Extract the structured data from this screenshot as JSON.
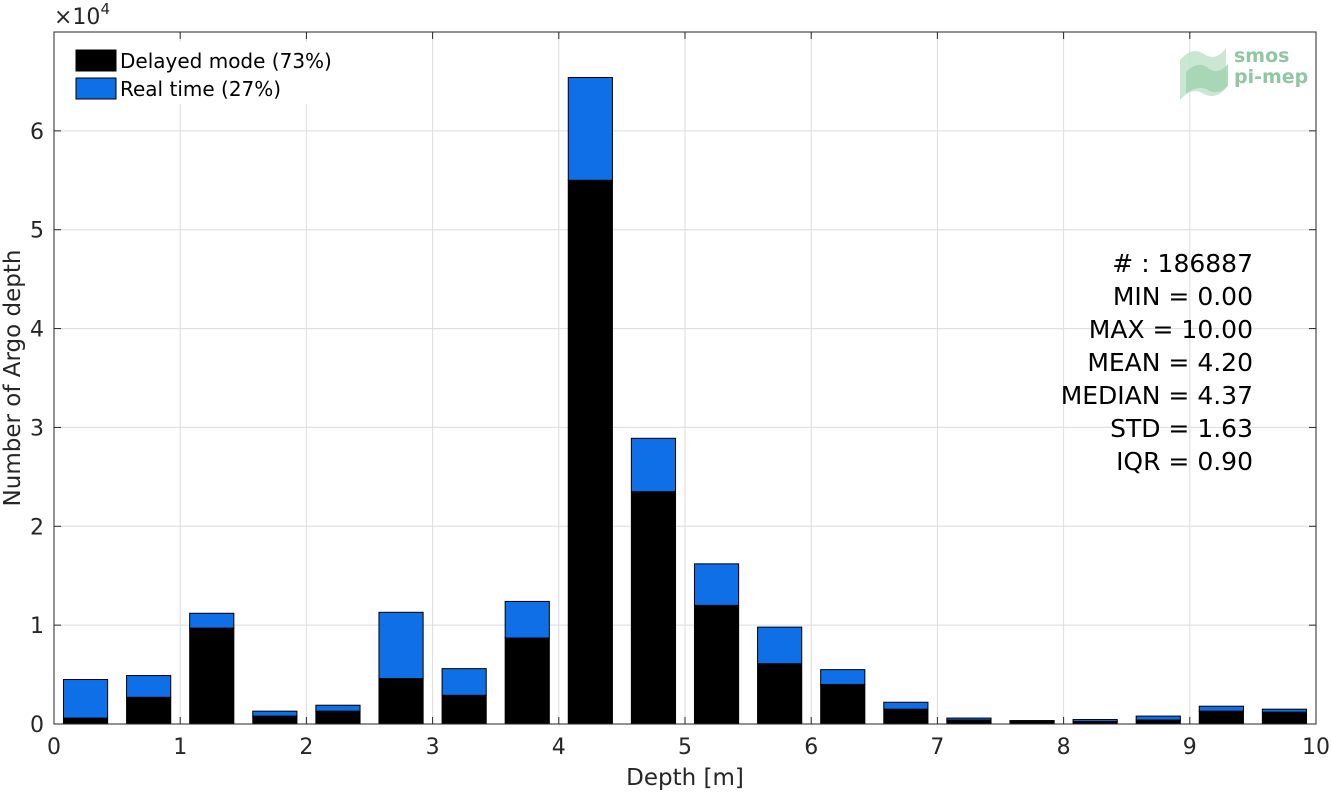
{
  "chart_data": {
    "type": "bar",
    "stacked": true,
    "categories": [
      "0.25",
      "0.75",
      "1.25",
      "1.75",
      "2.25",
      "2.75",
      "3.25",
      "3.75",
      "4.25",
      "4.75",
      "5.25",
      "5.75",
      "6.25",
      "6.75",
      "7.25",
      "7.75",
      "8.25",
      "8.75",
      "9.25",
      "9.75"
    ],
    "x": [
      0.25,
      0.75,
      1.25,
      1.75,
      2.25,
      2.75,
      3.25,
      3.75,
      4.25,
      4.75,
      5.25,
      5.75,
      6.25,
      6.75,
      7.25,
      7.75,
      8.25,
      8.75,
      9.25,
      9.75
    ],
    "series": [
      {
        "name": "Delayed mode (73%)",
        "color": "#000000",
        "values": [
          600,
          2700,
          9700,
          800,
          1300,
          4600,
          2900,
          8700,
          55000,
          23500,
          12000,
          6100,
          4000,
          1500,
          400,
          250,
          250,
          400,
          1300,
          1200
        ]
      },
      {
        "name": "Real time (27%)",
        "color": "#0f6fe6",
        "values": [
          3900,
          2200,
          1500,
          500,
          600,
          6700,
          2700,
          3700,
          10400,
          5400,
          4200,
          3700,
          1500,
          700,
          200,
          100,
          200,
          400,
          500,
          300
        ]
      }
    ],
    "xlabel": "Depth [m]",
    "ylabel": "Number of Argo depth",
    "xlim": [
      0,
      10
    ],
    "ylim": [
      0,
      70000
    ],
    "xticks": [
      "0",
      "1",
      "2",
      "3",
      "4",
      "5",
      "6",
      "7",
      "8",
      "9",
      "10"
    ],
    "yticks": [
      "0",
      "1",
      "2",
      "3",
      "4",
      "5",
      "6"
    ],
    "y_exponent_label": "×10",
    "y_exponent_power": "4",
    "grid": true,
    "legend_position": "top-left",
    "stats": [
      "# : 186887",
      "MIN = 0.00",
      "MAX =  10.00",
      "MEAN = 4.20",
      "MEDIAN = 4.37",
      "STD = 1.63",
      "IQR = 0.90"
    ]
  },
  "logo": {
    "line1": "smos",
    "line2": "pi-mep"
  }
}
